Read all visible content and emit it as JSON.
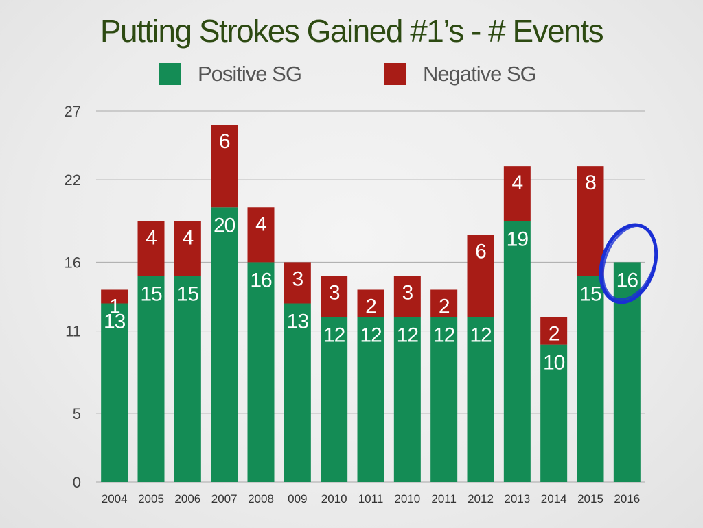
{
  "chart_data": {
    "type": "bar",
    "stacked": true,
    "title": "Putting Strokes Gained #1’s - # Events",
    "legend": {
      "placement": "top",
      "entries": [
        "Positive SG",
        "Negative SG"
      ]
    },
    "categories": [
      "2004",
      "2005",
      "2006",
      "2007",
      "2008",
      "009",
      "2010",
      "1011",
      "2010",
      "2011",
      "2012",
      "2013",
      "2014",
      "2015",
      "2016"
    ],
    "series": [
      {
        "name": "Positive SG",
        "color": "#148c55",
        "values": [
          13,
          15,
          15,
          20,
          16,
          13,
          12,
          12,
          12,
          12,
          12,
          19,
          10,
          15,
          16
        ]
      },
      {
        "name": "Negative SG",
        "color": "#a81c16",
        "values": [
          1,
          4,
          4,
          6,
          4,
          3,
          3,
          2,
          3,
          2,
          6,
          4,
          2,
          8,
          0
        ]
      }
    ],
    "y_ticks": [
      "0",
      "5",
      "11",
      "16",
      "22",
      "27"
    ],
    "ylim": [
      0,
      27
    ],
    "grid": true,
    "highlight": {
      "category_index": 14,
      "shape": "hand-drawn circle",
      "color": "#1a2fd4"
    }
  }
}
